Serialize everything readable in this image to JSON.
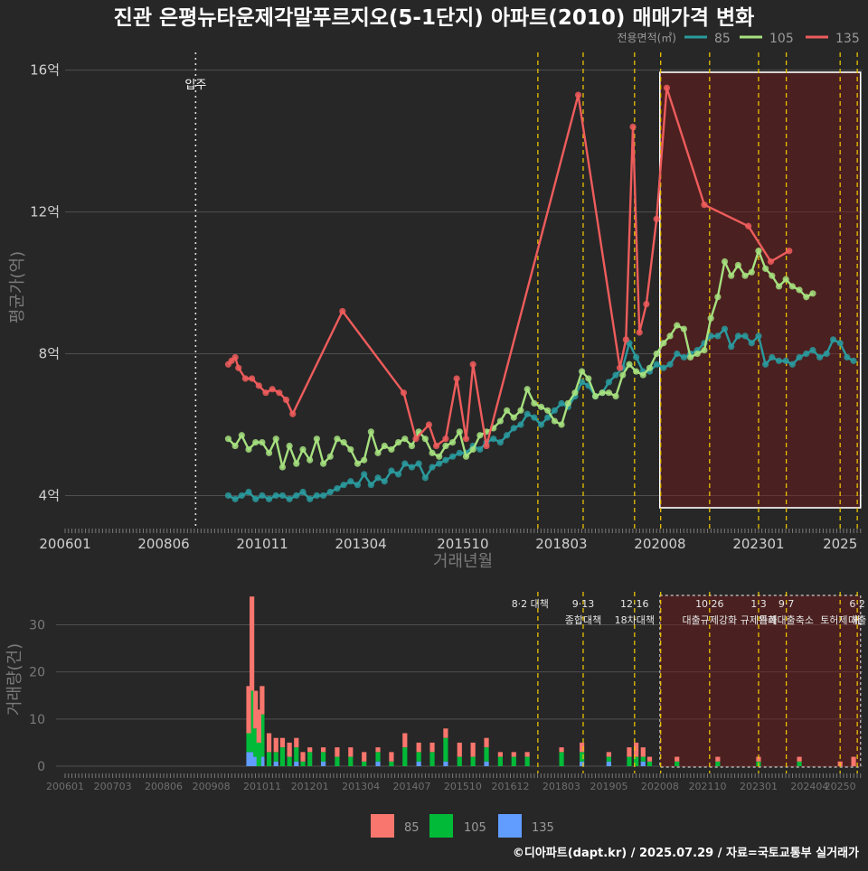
{
  "title": "진관 은평뉴타운제각말푸르지오(5-1단지) 아파트(2010) 매매가격 변화",
  "footer": "©디아파트(dapt.kr) / 2025.07.29 / 자료=국토교통부 실거래가",
  "colors": {
    "background": "#272727",
    "s85": "#2a9a9e",
    "s105": "#a6e07f",
    "s135": "#ee5c5c",
    "bar85": "#f8766d",
    "bar105": "#00ba38",
    "bar135": "#619cff",
    "policy": "#e8c100"
  },
  "legend_top": {
    "title": "전용면적(㎡)",
    "items": [
      "85",
      "105",
      "135"
    ]
  },
  "legend_bottom": {
    "items": [
      "85",
      "105",
      "135"
    ]
  },
  "move_in_label": "입주",
  "chart_data": [
    {
      "type": "line",
      "ylabel": "평균가(억)",
      "xlabel": "거래년월",
      "y_ticks": [
        "4억",
        "8억",
        "12억",
        "16억"
      ],
      "x_ticks": [
        "200601",
        "200806",
        "201011",
        "201304",
        "201510",
        "201803",
        "202008",
        "202301",
        "2025"
      ],
      "xlim": [
        2006.0,
        2025.55
      ],
      "ylim": [
        3.4,
        16.5
      ],
      "move_in": 2009.2,
      "policy_lines": [
        2017.59,
        2018.7,
        2019.96,
        2020.6,
        2021.8,
        2023.0,
        2023.68,
        2025.0,
        2025.42
      ],
      "highlight_range": [
        2020.58,
        2025.5
      ],
      "series": [
        {
          "name": "135",
          "x": [
            2010.0,
            2010.08,
            2010.17,
            2010.25,
            2010.42,
            2010.58,
            2010.75,
            2010.92,
            2011.08,
            2011.25,
            2011.42,
            2011.58,
            2012.8,
            2014.3,
            2014.6,
            2014.92,
            2015.1,
            2015.33,
            2015.6,
            2015.83,
            2016.0,
            2016.33,
            2018.58,
            2019.6,
            2019.75,
            2019.92,
            2020.08,
            2020.25,
            2020.5,
            2020.75,
            2021.67,
            2022.75,
            2023.3,
            2023.75
          ],
          "values": [
            7.7,
            7.8,
            7.9,
            7.6,
            7.3,
            7.3,
            7.1,
            6.9,
            7.0,
            6.9,
            6.7,
            6.3,
            9.2,
            6.9,
            5.6,
            6.0,
            5.4,
            5.6,
            7.3,
            5.6,
            7.7,
            5.4,
            15.3,
            7.6,
            8.4,
            14.4,
            8.6,
            9.4,
            11.8,
            15.5,
            12.2,
            11.6,
            10.6,
            10.9
          ]
        },
        {
          "name": "105",
          "x": [
            2010.0,
            2010.17,
            2010.33,
            2010.5,
            2010.67,
            2010.83,
            2011.0,
            2011.17,
            2011.33,
            2011.5,
            2011.67,
            2011.83,
            2012.0,
            2012.17,
            2012.33,
            2012.5,
            2012.67,
            2012.83,
            2013.0,
            2013.17,
            2013.33,
            2013.5,
            2013.67,
            2013.83,
            2014.0,
            2014.17,
            2014.33,
            2014.5,
            2014.67,
            2014.83,
            2015.0,
            2015.17,
            2015.33,
            2015.5,
            2015.67,
            2015.83,
            2016.0,
            2016.17,
            2016.33,
            2016.5,
            2016.67,
            2016.83,
            2017.0,
            2017.17,
            2017.33,
            2017.5,
            2017.67,
            2017.83,
            2018.0,
            2018.17,
            2018.33,
            2018.5,
            2018.67,
            2018.83,
            2019.0,
            2019.17,
            2019.33,
            2019.5,
            2019.67,
            2019.83,
            2020.0,
            2020.17,
            2020.33,
            2020.5,
            2020.67,
            2020.83,
            2021.0,
            2021.17,
            2021.33,
            2021.5,
            2021.67,
            2021.83,
            2022.0,
            2022.17,
            2022.33,
            2022.5,
            2022.67,
            2022.83,
            2023.0,
            2023.17,
            2023.33,
            2023.5,
            2023.67,
            2023.83,
            2024.0,
            2024.17,
            2024.33
          ],
          "values": [
            5.6,
            5.4,
            5.7,
            5.3,
            5.5,
            5.5,
            5.2,
            5.6,
            4.8,
            5.4,
            4.9,
            5.3,
            5.0,
            5.6,
            4.9,
            5.1,
            5.6,
            5.5,
            5.3,
            4.9,
            5.0,
            5.8,
            5.2,
            5.4,
            5.3,
            5.5,
            5.6,
            5.4,
            5.8,
            5.6,
            5.2,
            5.1,
            5.4,
            5.5,
            5.8,
            5.1,
            5.3,
            5.7,
            5.8,
            5.9,
            6.1,
            6.4,
            6.2,
            6.4,
            7.0,
            6.6,
            6.5,
            6.4,
            6.1,
            6.0,
            6.6,
            6.9,
            7.5,
            7.3,
            6.8,
            6.9,
            6.9,
            6.8,
            7.4,
            7.7,
            7.5,
            7.4,
            7.6,
            8.0,
            8.3,
            8.5,
            8.8,
            8.7,
            7.9,
            8.0,
            8.1,
            9.0,
            9.6,
            10.6,
            10.2,
            10.5,
            10.2,
            10.3,
            10.9,
            10.4,
            10.2,
            9.9,
            10.1,
            9.9,
            9.8,
            9.6,
            9.7
          ]
        },
        {
          "name": "85",
          "x": [
            2010.0,
            2010.17,
            2010.33,
            2010.5,
            2010.67,
            2010.83,
            2011.0,
            2011.17,
            2011.33,
            2011.5,
            2011.67,
            2011.83,
            2012.0,
            2012.17,
            2012.33,
            2012.5,
            2012.67,
            2012.83,
            2013.0,
            2013.17,
            2013.33,
            2013.5,
            2013.67,
            2013.83,
            2014.0,
            2014.17,
            2014.33,
            2014.5,
            2014.67,
            2014.83,
            2015.0,
            2015.17,
            2015.33,
            2015.5,
            2015.67,
            2015.83,
            2016.0,
            2016.17,
            2016.33,
            2016.5,
            2016.67,
            2016.83,
            2017.0,
            2017.17,
            2017.33,
            2017.5,
            2017.67,
            2017.83,
            2018.0,
            2018.17,
            2018.33,
            2018.5,
            2018.67,
            2018.83,
            2019.0,
            2019.17,
            2019.33,
            2019.5,
            2019.67,
            2019.83,
            2020.0,
            2020.17,
            2020.33,
            2020.5,
            2020.67,
            2020.83,
            2021.0,
            2021.17,
            2021.33,
            2021.5,
            2021.67,
            2021.83,
            2022.0,
            2022.17,
            2022.33,
            2022.5,
            2022.67,
            2022.83,
            2023.0,
            2023.17,
            2023.33,
            2023.5,
            2023.67,
            2023.83,
            2024.0,
            2024.17,
            2024.33,
            2024.5,
            2024.67,
            2024.83,
            2025.0,
            2025.17,
            2025.33
          ],
          "values": [
            4.0,
            3.9,
            4.0,
            4.1,
            3.9,
            4.0,
            3.9,
            4.0,
            4.0,
            3.9,
            4.0,
            4.1,
            3.9,
            4.0,
            4.0,
            4.1,
            4.2,
            4.3,
            4.4,
            4.3,
            4.6,
            4.3,
            4.5,
            4.4,
            4.7,
            4.6,
            4.9,
            4.8,
            4.9,
            4.5,
            4.8,
            4.9,
            5.0,
            5.1,
            5.2,
            5.2,
            5.4,
            5.3,
            5.5,
            5.6,
            5.5,
            5.7,
            5.9,
            6.0,
            6.3,
            6.2,
            6.0,
            6.2,
            6.4,
            6.6,
            6.5,
            6.8,
            7.2,
            7.1,
            6.8,
            6.9,
            7.2,
            7.4,
            7.6,
            8.3,
            7.9,
            7.5,
            7.5,
            7.7,
            7.6,
            7.7,
            8.0,
            7.9,
            8.0,
            8.1,
            8.3,
            8.5,
            8.5,
            8.7,
            8.2,
            8.5,
            8.5,
            8.3,
            8.5,
            7.7,
            7.9,
            7.8,
            7.8,
            7.7,
            7.9,
            8.0,
            8.1,
            7.9,
            8.0,
            8.4,
            8.3,
            7.9,
            7.8
          ]
        }
      ]
    },
    {
      "type": "bar",
      "ylabel": "거래량(건)",
      "y_ticks": [
        "0",
        "10",
        "20",
        "30"
      ],
      "ylim": [
        0,
        37
      ],
      "x_ticks": [
        "200601",
        "200703",
        "200806",
        "200908",
        "201011",
        "201201",
        "201304",
        "201407",
        "201510",
        "201612",
        "201803",
        "201905",
        "202008",
        "202110",
        "202301",
        "202404",
        "20250"
      ],
      "highlight_range": [
        2020.58,
        2025.5
      ],
      "policy_lines": [
        2017.59,
        2018.7,
        2019.96,
        2020.6,
        2021.8,
        2023.0,
        2023.68,
        2025.0,
        2025.42
      ],
      "annotations": [
        {
          "x": 2017.4,
          "row1": "8·2 대책",
          "row2": ""
        },
        {
          "x": 2018.7,
          "row1": "9·13",
          "row2": "종합대책"
        },
        {
          "x": 2019.96,
          "row1": "12·16",
          "row2": "18차대책"
        },
        {
          "x": 2021.8,
          "row1": "10·26",
          "row2": "대출규제강화"
        },
        {
          "x": 2023.0,
          "row1": "1·3",
          "row2": "규제완화"
        },
        {
          "x": 2023.68,
          "row1": "9·7",
          "row2": "특례대출축소"
        },
        {
          "x": 2025.0,
          "row1": "",
          "row2": "토허제 해"
        },
        {
          "x": 2025.42,
          "row1": "6·2",
          "row2": "대출"
        }
      ],
      "series": [
        {
          "name": "85",
          "x": [
            2010.5,
            2010.58,
            2010.67,
            2010.75,
            2010.83,
            2011.0,
            2011.17,
            2011.33,
            2011.5,
            2011.67,
            2011.83,
            2012.0,
            2012.33,
            2012.67,
            2013.0,
            2013.33,
            2013.67,
            2014.0,
            2014.33,
            2014.67,
            2015.0,
            2015.33,
            2015.67,
            2016.0,
            2016.33,
            2016.67,
            2017.0,
            2017.33,
            2018.17,
            2018.67,
            2019.33,
            2019.83,
            2020.0,
            2020.17,
            2020.33,
            2021.0,
            2022.0,
            2023.0,
            2024.0,
            2025.0,
            2025.33
          ],
          "values": [
            10,
            20,
            8,
            7,
            6,
            4,
            3,
            2,
            3,
            2,
            2,
            1,
            1,
            2,
            2,
            2,
            1,
            2,
            3,
            2,
            2,
            2,
            3,
            3,
            2,
            1,
            1,
            1,
            1,
            2,
            1,
            2,
            3,
            2,
            1,
            1,
            1,
            1,
            1,
            1,
            2
          ]
        },
        {
          "name": "105",
          "x": [
            2010.5,
            2010.58,
            2010.67,
            2010.75,
            2010.83,
            2011.0,
            2011.17,
            2011.33,
            2011.5,
            2011.67,
            2011.83,
            2012.0,
            2012.33,
            2012.67,
            2013.0,
            2013.33,
            2013.67,
            2014.0,
            2014.33,
            2014.67,
            2015.0,
            2015.33,
            2015.67,
            2016.0,
            2016.33,
            2016.67,
            2017.0,
            2017.33,
            2018.17,
            2018.67,
            2019.33,
            2019.83,
            2020.0,
            2020.17,
            2020.33,
            2021.0,
            2022.0,
            2023.0,
            2024.0
          ],
          "values": [
            4,
            13,
            6,
            5,
            9,
            3,
            2,
            4,
            2,
            3,
            1,
            3,
            2,
            2,
            2,
            1,
            2,
            1,
            4,
            2,
            3,
            5,
            2,
            2,
            3,
            2,
            2,
            2,
            3,
            2,
            1,
            2,
            2,
            1,
            1,
            1,
            1,
            1,
            1
          ]
        },
        {
          "name": "135",
          "x": [
            2010.5,
            2010.58,
            2010.67,
            2010.83,
            2011.17,
            2011.67,
            2012.33,
            2013.67,
            2014.67,
            2015.33,
            2016.33,
            2018.67,
            2019.33,
            2020.17
          ],
          "values": [
            3,
            3,
            2,
            2,
            1,
            1,
            1,
            1,
            1,
            1,
            1,
            1,
            1,
            1
          ]
        }
      ]
    }
  ]
}
